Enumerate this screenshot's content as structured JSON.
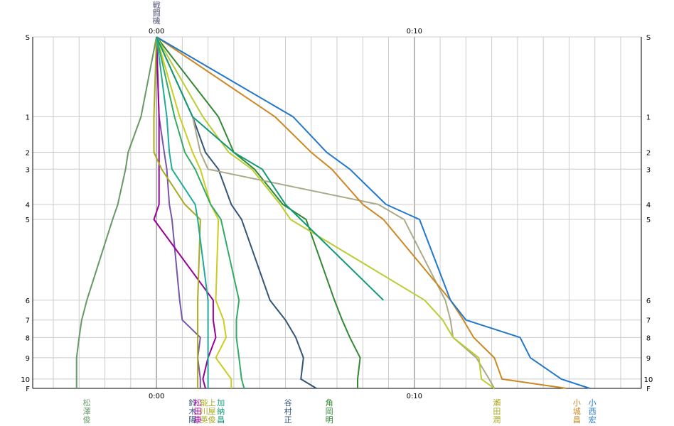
{
  "chart_data": {
    "type": "line",
    "title": "",
    "xlabel": "",
    "ylabel": "",
    "x_unit": "minutes relative to reference",
    "xlim": [
      -4.8,
      18.8
    ],
    "x_ticks": [
      {
        "value": 0,
        "label": "0:00"
      },
      {
        "value": 10,
        "label": "0:10"
      }
    ],
    "grid": true,
    "y_ticks": [
      {
        "stop": 0,
        "label": "S"
      },
      {
        "stop": 1,
        "label": "1"
      },
      {
        "stop": 2,
        "label": "2"
      },
      {
        "stop": 3,
        "label": "3"
      },
      {
        "stop": 4,
        "label": "4"
      },
      {
        "stop": 5,
        "label": "5"
      },
      {
        "stop": 6,
        "label": "6"
      },
      {
        "stop": 7,
        "label": "7"
      },
      {
        "stop": 8,
        "label": "8"
      },
      {
        "stop": 9,
        "label": "9"
      },
      {
        "stop": 10,
        "label": "10"
      },
      {
        "stop": 11,
        "label": "F"
      }
    ],
    "y_positions": [
      0,
      0.2273,
      0.3284,
      0.3763,
      0.4766,
      0.5193,
      0.749,
      0.8055,
      0.8552,
      0.9129,
      0.9735,
      1.0
    ],
    "top_marker": "戦闘機",
    "series": [
      {
        "name": "松澤俊",
        "color": "#669966",
        "values": [
          0,
          -0.6,
          -1.1,
          -1.2,
          -1.5,
          -1.7,
          -2.7,
          -2.9,
          -3.0,
          -3.1,
          -3.1,
          -3.1
        ]
      },
      {
        "name": "鈴木陽",
        "color": "#7755aa",
        "values": [
          0,
          0.1,
          0.3,
          0.4,
          0.5,
          0.6,
          0.9,
          1.0,
          1.7,
          1.6,
          1.7,
          1.7
        ]
      },
      {
        "name": "松田康",
        "color": "#990099",
        "values": [
          0,
          0.1,
          0.1,
          0.1,
          0.1,
          -0.1,
          2.2,
          2.2,
          2.3,
          2.0,
          1.8,
          1.9
        ]
      },
      {
        "name": "能川英",
        "color": "#aaaa22",
        "values": [
          0,
          -0.1,
          -0.1,
          0.2,
          1.1,
          1.7,
          1.6,
          1.6,
          1.6,
          1.6,
          1.6,
          1.6
        ]
      },
      {
        "name": "上屋俊",
        "color": "#cccc22",
        "values": [
          0,
          0.9,
          1.4,
          1.7,
          2.1,
          2.4,
          2.3,
          2.6,
          2.7,
          2.3,
          2.9,
          2.9
        ]
      },
      {
        "name": "加納昌",
        "color": "#33aa66",
        "values": [
          0,
          0.7,
          1.1,
          1.5,
          2.1,
          2.5,
          3.2,
          3.1,
          3.1,
          3.2,
          3.3,
          3.4
        ]
      },
      {
        "name": "加納昌",
        "color": "#22aa99",
        "values": [
          0,
          0.4,
          0.5,
          0.6,
          1.5,
          1.6,
          2.0,
          2.0,
          2.0,
          2.0,
          2.0,
          2.0
        ]
      },
      {
        "name": "谷村正",
        "color": "#335577",
        "values": [
          0,
          1.4,
          1.9,
          2.4,
          2.9,
          3.3,
          4.4,
          5.0,
          5.4,
          5.7,
          5.6,
          6.2
        ]
      },
      {
        "name": "角岡明",
        "color": "#338833",
        "values": [
          0,
          2.4,
          3.0,
          3.8,
          4.9,
          5.8,
          6.9,
          7.2,
          7.5,
          7.9,
          7.8,
          7.8
        ]
      },
      {
        "name": "瀬田潤",
        "color": "#aaaa88",
        "values": [
          0,
          1.4,
          1.7,
          2.0,
          8.6,
          9.6,
          11.2,
          11.4,
          11.5,
          12.4,
          12.9,
          13.1
        ]
      },
      {
        "name": "小城昌",
        "color": "#cc8822",
        "values": [
          0,
          4.6,
          6.0,
          6.8,
          8.0,
          8.8,
          11.4,
          11.9,
          12.3,
          13.1,
          13.4,
          15.9
        ]
      },
      {
        "name": "小西宏",
        "color": "#2277cc",
        "values": [
          0,
          5.3,
          6.6,
          7.5,
          8.9,
          10.2,
          11.4,
          12.0,
          14.1,
          14.5,
          15.7,
          16.8
        ]
      },
      {
        "name": "瀬田潤",
        "color": "#bbcc33",
        "values": [
          0,
          1.8,
          2.8,
          3.7,
          4.8,
          5.2,
          10.4,
          11.1,
          11.5,
          12.5,
          12.6,
          13.1
        ]
      },
      {
        "name": "",
        "color": "#119977",
        "values": [
          0,
          1.4,
          3.0,
          4.1,
          5.0,
          5.6,
          8.8
        ]
      }
    ],
    "bottom_labels": [
      {
        "text": "松澤俊",
        "color": "#669966",
        "x": -2.7
      },
      {
        "text": "鈴木陽",
        "color": "#335577",
        "x": 1.4
      },
      {
        "text": "松田康",
        "color": "#990099",
        "x": 1.6
      },
      {
        "text": "能川英",
        "color": "#aaaa22",
        "x": 1.85
      },
      {
        "text": "上屋俊",
        "color": "#aaaa22",
        "x": 2.15
      },
      {
        "text": "加納昌",
        "color": "#119977",
        "x": 2.5
      },
      {
        "text": "谷村正",
        "color": "#335577",
        "x": 5.1
      },
      {
        "text": "角岡明",
        "color": "#338833",
        "x": 6.7
      },
      {
        "text": "瀬田潤",
        "color": "#aaaa22",
        "x": 13.2
      },
      {
        "text": "小城昌",
        "color": "#cc8822",
        "x": 16.3
      },
      {
        "text": "小西宏",
        "color": "#2277cc",
        "x": 16.9
      }
    ]
  }
}
